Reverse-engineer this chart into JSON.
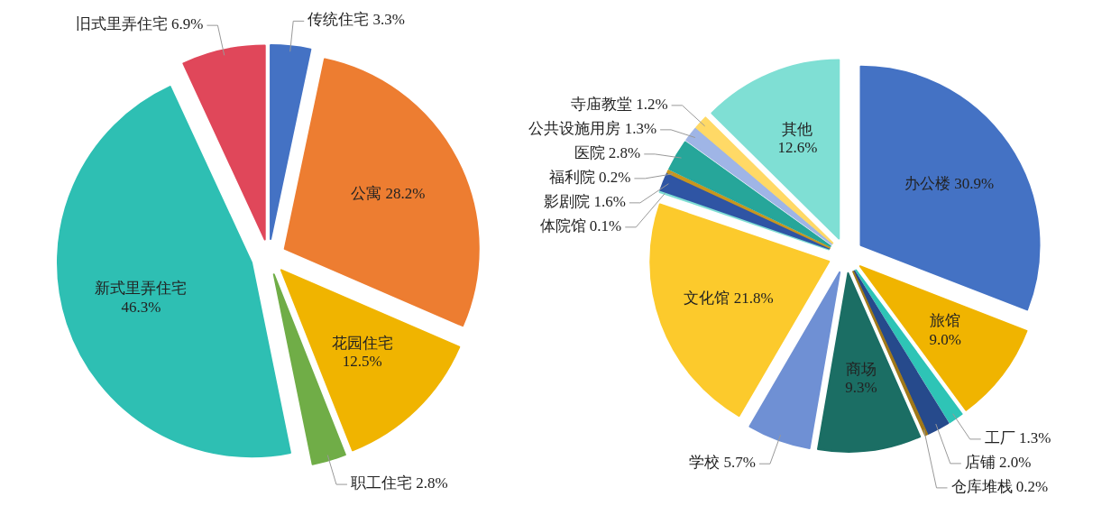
{
  "chart_data": [
    {
      "type": "pie",
      "categories": [
        "传统住宅",
        "公寓",
        "花园住宅",
        "职工住宅",
        "新式里弄住宅",
        "旧式里弄住宅"
      ],
      "values": [
        3.3,
        28.2,
        12.5,
        2.8,
        46.3,
        6.9
      ],
      "value_labels": [
        "3.3%",
        "28.2%",
        "12.5%",
        "2.8%",
        "46.3%",
        "6.9%"
      ],
      "colors": [
        "#4472c4",
        "#ed7d31",
        "#f0b400",
        "#70ad47",
        "#2ebfb3",
        "#e0475a"
      ]
    },
    {
      "type": "pie",
      "categories": [
        "办公楼",
        "旅馆",
        "工厂",
        "店铺",
        "仓库堆栈",
        "商场",
        "学校",
        "文化馆",
        "体院馆",
        "影剧院",
        "福利院",
        "医院",
        "公共设施用房",
        "寺庙教堂",
        "其他"
      ],
      "values": [
        30.9,
        9.0,
        1.3,
        2.0,
        0.2,
        9.3,
        5.7,
        21.8,
        0.1,
        1.6,
        0.2,
        2.8,
        1.3,
        1.2,
        12.6
      ],
      "value_labels": [
        "30.9%",
        "9.0%",
        "1.3%",
        "2.0%",
        "0.2%",
        "9.3%",
        "5.7%",
        "21.8%",
        "0.1%",
        "1.6%",
        "0.2%",
        "2.8%",
        "1.3%",
        "1.2%",
        "12.6%"
      ],
      "colors": [
        "#4472c4",
        "#f0b400",
        "#2ec4b6",
        "#264a8c",
        "#a07818",
        "#1b6e64",
        "#6f90d4",
        "#fcca2c",
        "#7fdfd4",
        "#2f55a4",
        "#c8961e",
        "#26a69a",
        "#9fb5e6",
        "#ffd966",
        "#7fdfd4"
      ]
    }
  ]
}
